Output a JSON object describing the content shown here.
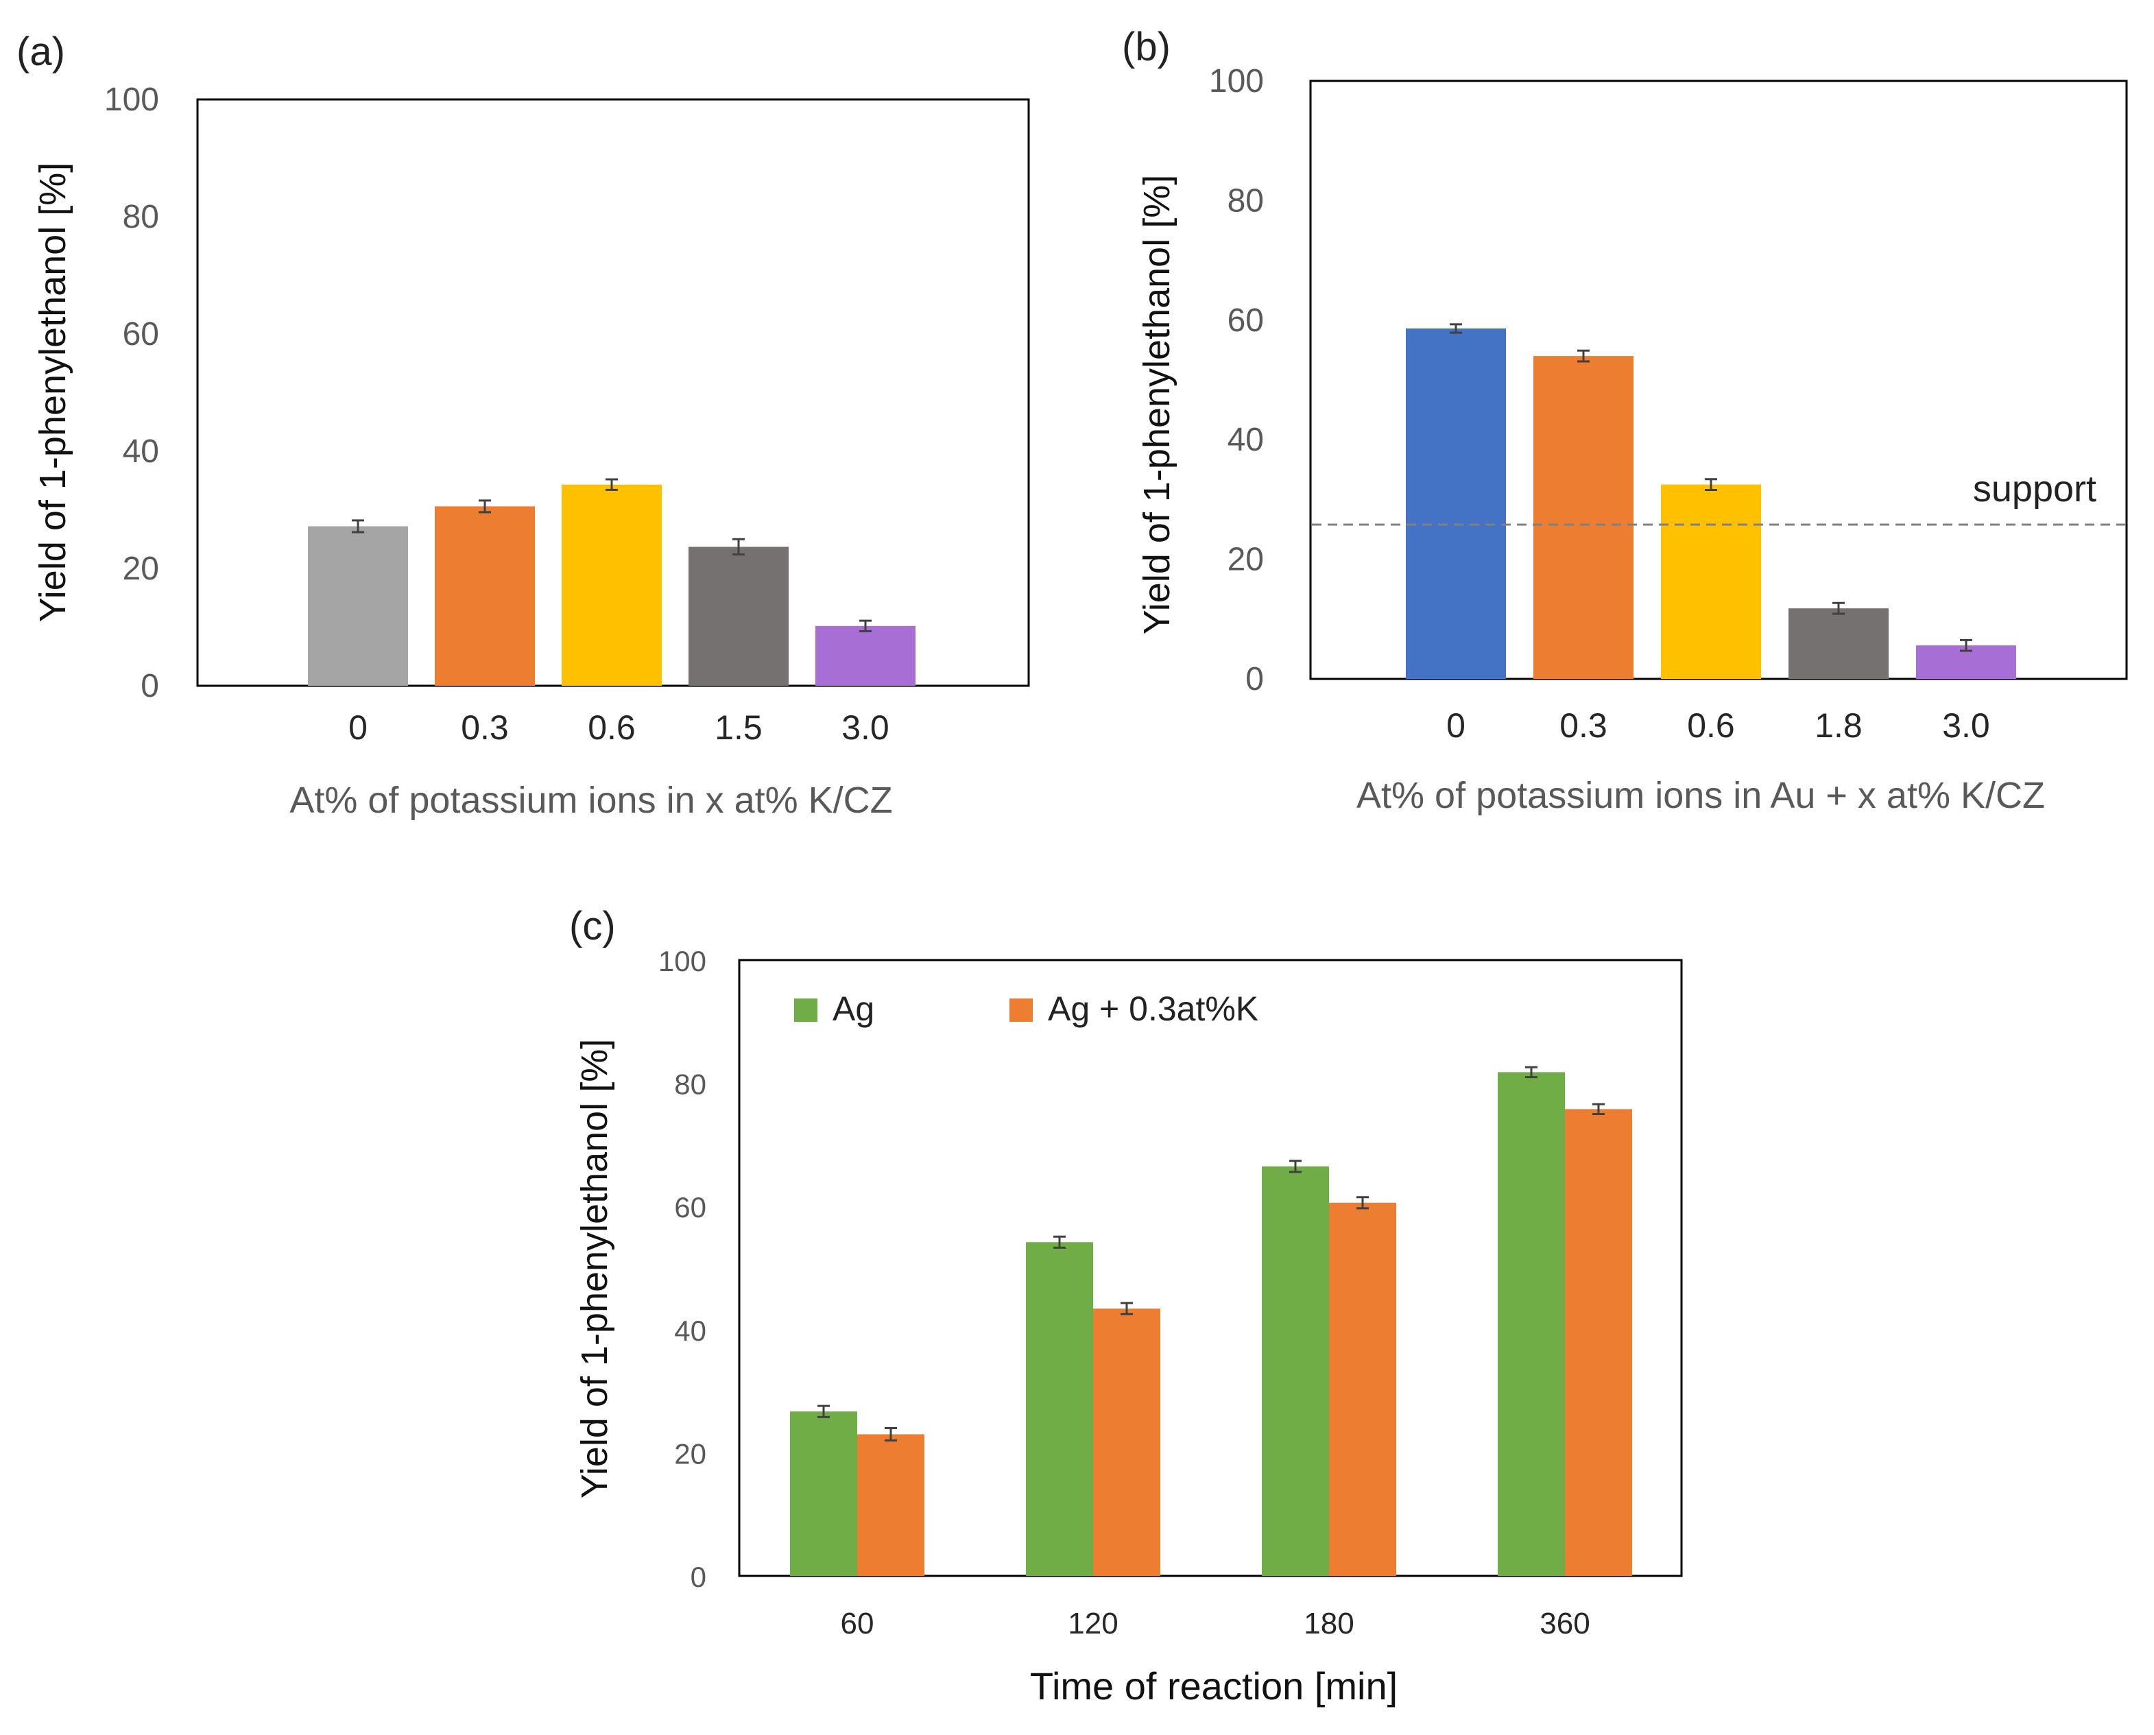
{
  "chart_data": [
    {
      "type": "bar",
      "panel_label": "(a)",
      "categories": [
        "0",
        "0.3",
        "0.6",
        "1.5",
        "3.0"
      ],
      "values": [
        27.2,
        30.6,
        34.3,
        23.7,
        10.2
      ],
      "errors": [
        1.0,
        1.0,
        0.9,
        1.3,
        0.9
      ],
      "colors": [
        "#a5a5a5",
        "#ed7d31",
        "#ffc000",
        "#767171",
        "#a76fd6"
      ],
      "title": "",
      "xlabel": "At% of potassium ions in x at% K/CZ",
      "ylabel": "Yield of 1-phenylethanol [%]",
      "ylim": [
        0,
        100
      ],
      "yticks": [
        "0",
        "20",
        "40",
        "60",
        "80",
        "100"
      ],
      "grid": false
    },
    {
      "type": "bar",
      "panel_label": "(b)",
      "categories": [
        "0",
        "0.3",
        "0.6",
        "1.8",
        "3.0"
      ],
      "values": [
        58.6,
        54.0,
        32.5,
        11.8,
        5.6
      ],
      "errors": [
        0.7,
        0.9,
        0.9,
        0.9,
        0.9
      ],
      "colors": [
        "#4472c4",
        "#ed7d31",
        "#ffc000",
        "#767171",
        "#a76fd6"
      ],
      "title": "",
      "xlabel": "At% of potassium ions in Au + x at% K/CZ",
      "ylabel": "Yield of 1-phenylethanol [%]",
      "ylim": [
        0,
        100
      ],
      "yticks": [
        "0",
        "20",
        "40",
        "60",
        "80",
        "100"
      ],
      "grid": false,
      "reference_line": {
        "label": "support",
        "value": 25.8,
        "style": "dashed",
        "color": "#808080"
      }
    },
    {
      "type": "bar",
      "panel_label": "(c)",
      "categories": [
        "60",
        "120",
        "180",
        "360"
      ],
      "series": [
        {
          "name": "Ag",
          "color": "#70ad47",
          "values": [
            26.7,
            54.2,
            66.5,
            81.8
          ],
          "errors": [
            0.9,
            0.9,
            0.9,
            0.8
          ]
        },
        {
          "name": "Ag + 0.3at%K",
          "color": "#ed7d31",
          "values": [
            23.0,
            43.4,
            60.6,
            75.8
          ],
          "errors": [
            1.0,
            0.9,
            0.9,
            0.8
          ]
        }
      ],
      "title": "",
      "xlabel": "Time of reaction [min]",
      "ylabel": "Yield of 1-phenylethanol [%]",
      "ylim": [
        0,
        100
      ],
      "yticks": [
        "0",
        "20",
        "40",
        "60",
        "80",
        "100"
      ],
      "grid": false,
      "legend_position": "top-left"
    }
  ]
}
